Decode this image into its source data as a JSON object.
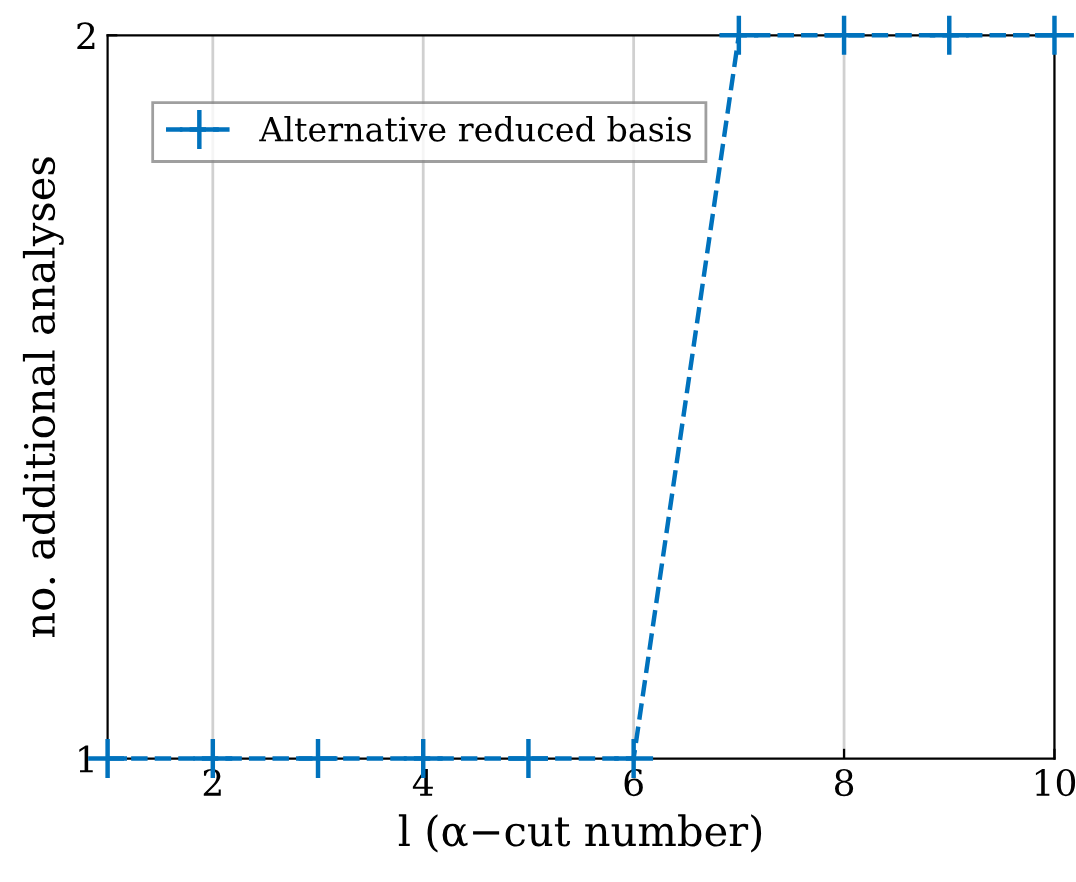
{
  "chart_data": {
    "type": "line",
    "xlabel": "l (α−cut number)",
    "ylabel": "no. additional analyses",
    "x": [
      1,
      2,
      3,
      4,
      5,
      6,
      7,
      8,
      9,
      10
    ],
    "series": [
      {
        "name": "Alternative reduced basis",
        "color": "#0072bd",
        "values": [
          1,
          1,
          1,
          1,
          1,
          1,
          2,
          2,
          2,
          2
        ]
      }
    ],
    "xlim": [
      1,
      10
    ],
    "xticks": [
      2,
      4,
      6,
      8,
      10
    ],
    "ylim": [
      1,
      2
    ],
    "yticks": [
      1,
      2
    ],
    "grid": "x",
    "legend": "top left",
    "marker": "cross",
    "line_style": "dashed"
  }
}
